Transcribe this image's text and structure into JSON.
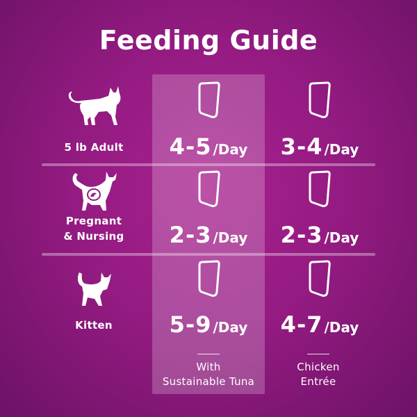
{
  "title": "Feeding Guide",
  "rows": [
    {
      "label": "5 lb Adult",
      "icon": "adult-cat-icon",
      "tuna": "4-5",
      "chicken": "3-4"
    },
    {
      "label_line1": "Pregnant",
      "label_line2": "& Nursing",
      "icon": "pregnant-cat-icon",
      "tuna": "2-3",
      "chicken": "2-3"
    },
    {
      "label": "Kitten",
      "icon": "kitten-icon",
      "tuna": "5-9",
      "chicken": "4-7"
    }
  ],
  "unit": "/Day",
  "columns": [
    {
      "line1": "With",
      "line2": "Sustainable Tuna",
      "highlighted": true
    },
    {
      "line1": "Chicken",
      "line2": "Entrée",
      "highlighted": false
    }
  ],
  "colors": {
    "background": "#941b82",
    "text": "#ffffff"
  }
}
